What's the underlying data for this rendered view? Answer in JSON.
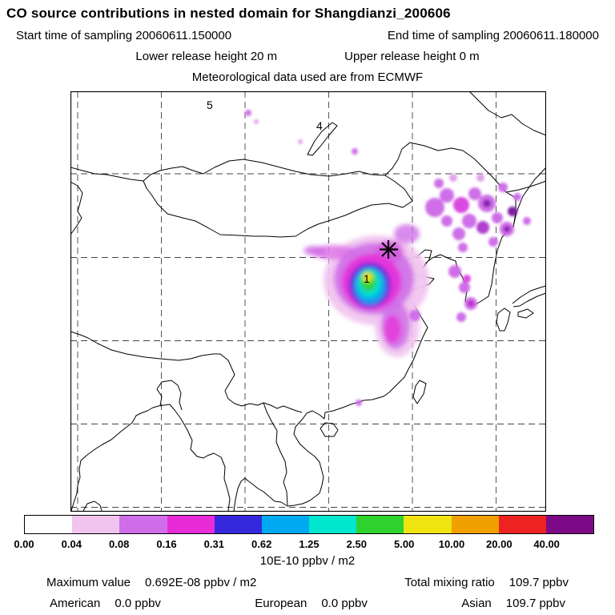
{
  "header": {
    "title": "CO  source contributions in nested domain for Shangdianzi_200606",
    "start_time_label": "Start time of sampling 20060611.150000",
    "end_time_label": "End time of sampling 20060611.180000",
    "lower_release": "Lower release height   20 m",
    "upper_release": "Upper release height   0 m",
    "met_data": "Meteorological data used are from ECMWF"
  },
  "map": {
    "labels": [
      {
        "text": "5"
      },
      {
        "text": "4"
      },
      {
        "text": "1"
      }
    ]
  },
  "chart_data": {
    "type": "heatmap",
    "title": "CO source contributions in nested domain for Shangdianzi_200606",
    "receptor_site": "Shangdianzi_200606",
    "sampling_start": "20060611.150000",
    "sampling_end": "20060611.180000",
    "lower_release_height": "20 m",
    "upper_release_height": "0 m",
    "meteorology": "ECMWF",
    "colorbar": {
      "units_label": "10E-10 ppbv / m2",
      "levels": [
        "0.00",
        "0.04",
        "0.08",
        "0.16",
        "0.31",
        "0.62",
        "1.25",
        "2.50",
        "5.00",
        "10.00",
        "20.00",
        "40.00"
      ],
      "colors": [
        "#ffffff",
        "#f1c4ef",
        "#cf6ee8",
        "#e72cd7",
        "#3628dd",
        "#00aaf0",
        "#00e6cf",
        "#2ed22e",
        "#efe310",
        "#f0a000",
        "#ef2222",
        "#7c0a86"
      ]
    },
    "stats": {
      "maximum_value": "0.692E-08 ppbv / m2",
      "total_mixing_ratio": "109.7 ppbv",
      "contributions": [
        {
          "region": "American",
          "value": "0.0 ppbv"
        },
        {
          "region": "European",
          "value": "0.0 ppbv"
        },
        {
          "region": "Asian",
          "value": "109.7 ppbv"
        }
      ]
    }
  },
  "footer": {
    "units_label": "10E-10 ppbv / m2",
    "max_label": "Maximum value",
    "max_value": "0.692E-08 ppbv / m2",
    "tmr_label": "Total mixing ratio",
    "tmr_value": "109.7 ppbv",
    "regions": [
      {
        "name": "American",
        "value": "0.0 ppbv"
      },
      {
        "name": "European",
        "value": "0.0 ppbv"
      },
      {
        "name": "Asian",
        "value": "109.7 ppbv"
      }
    ]
  }
}
